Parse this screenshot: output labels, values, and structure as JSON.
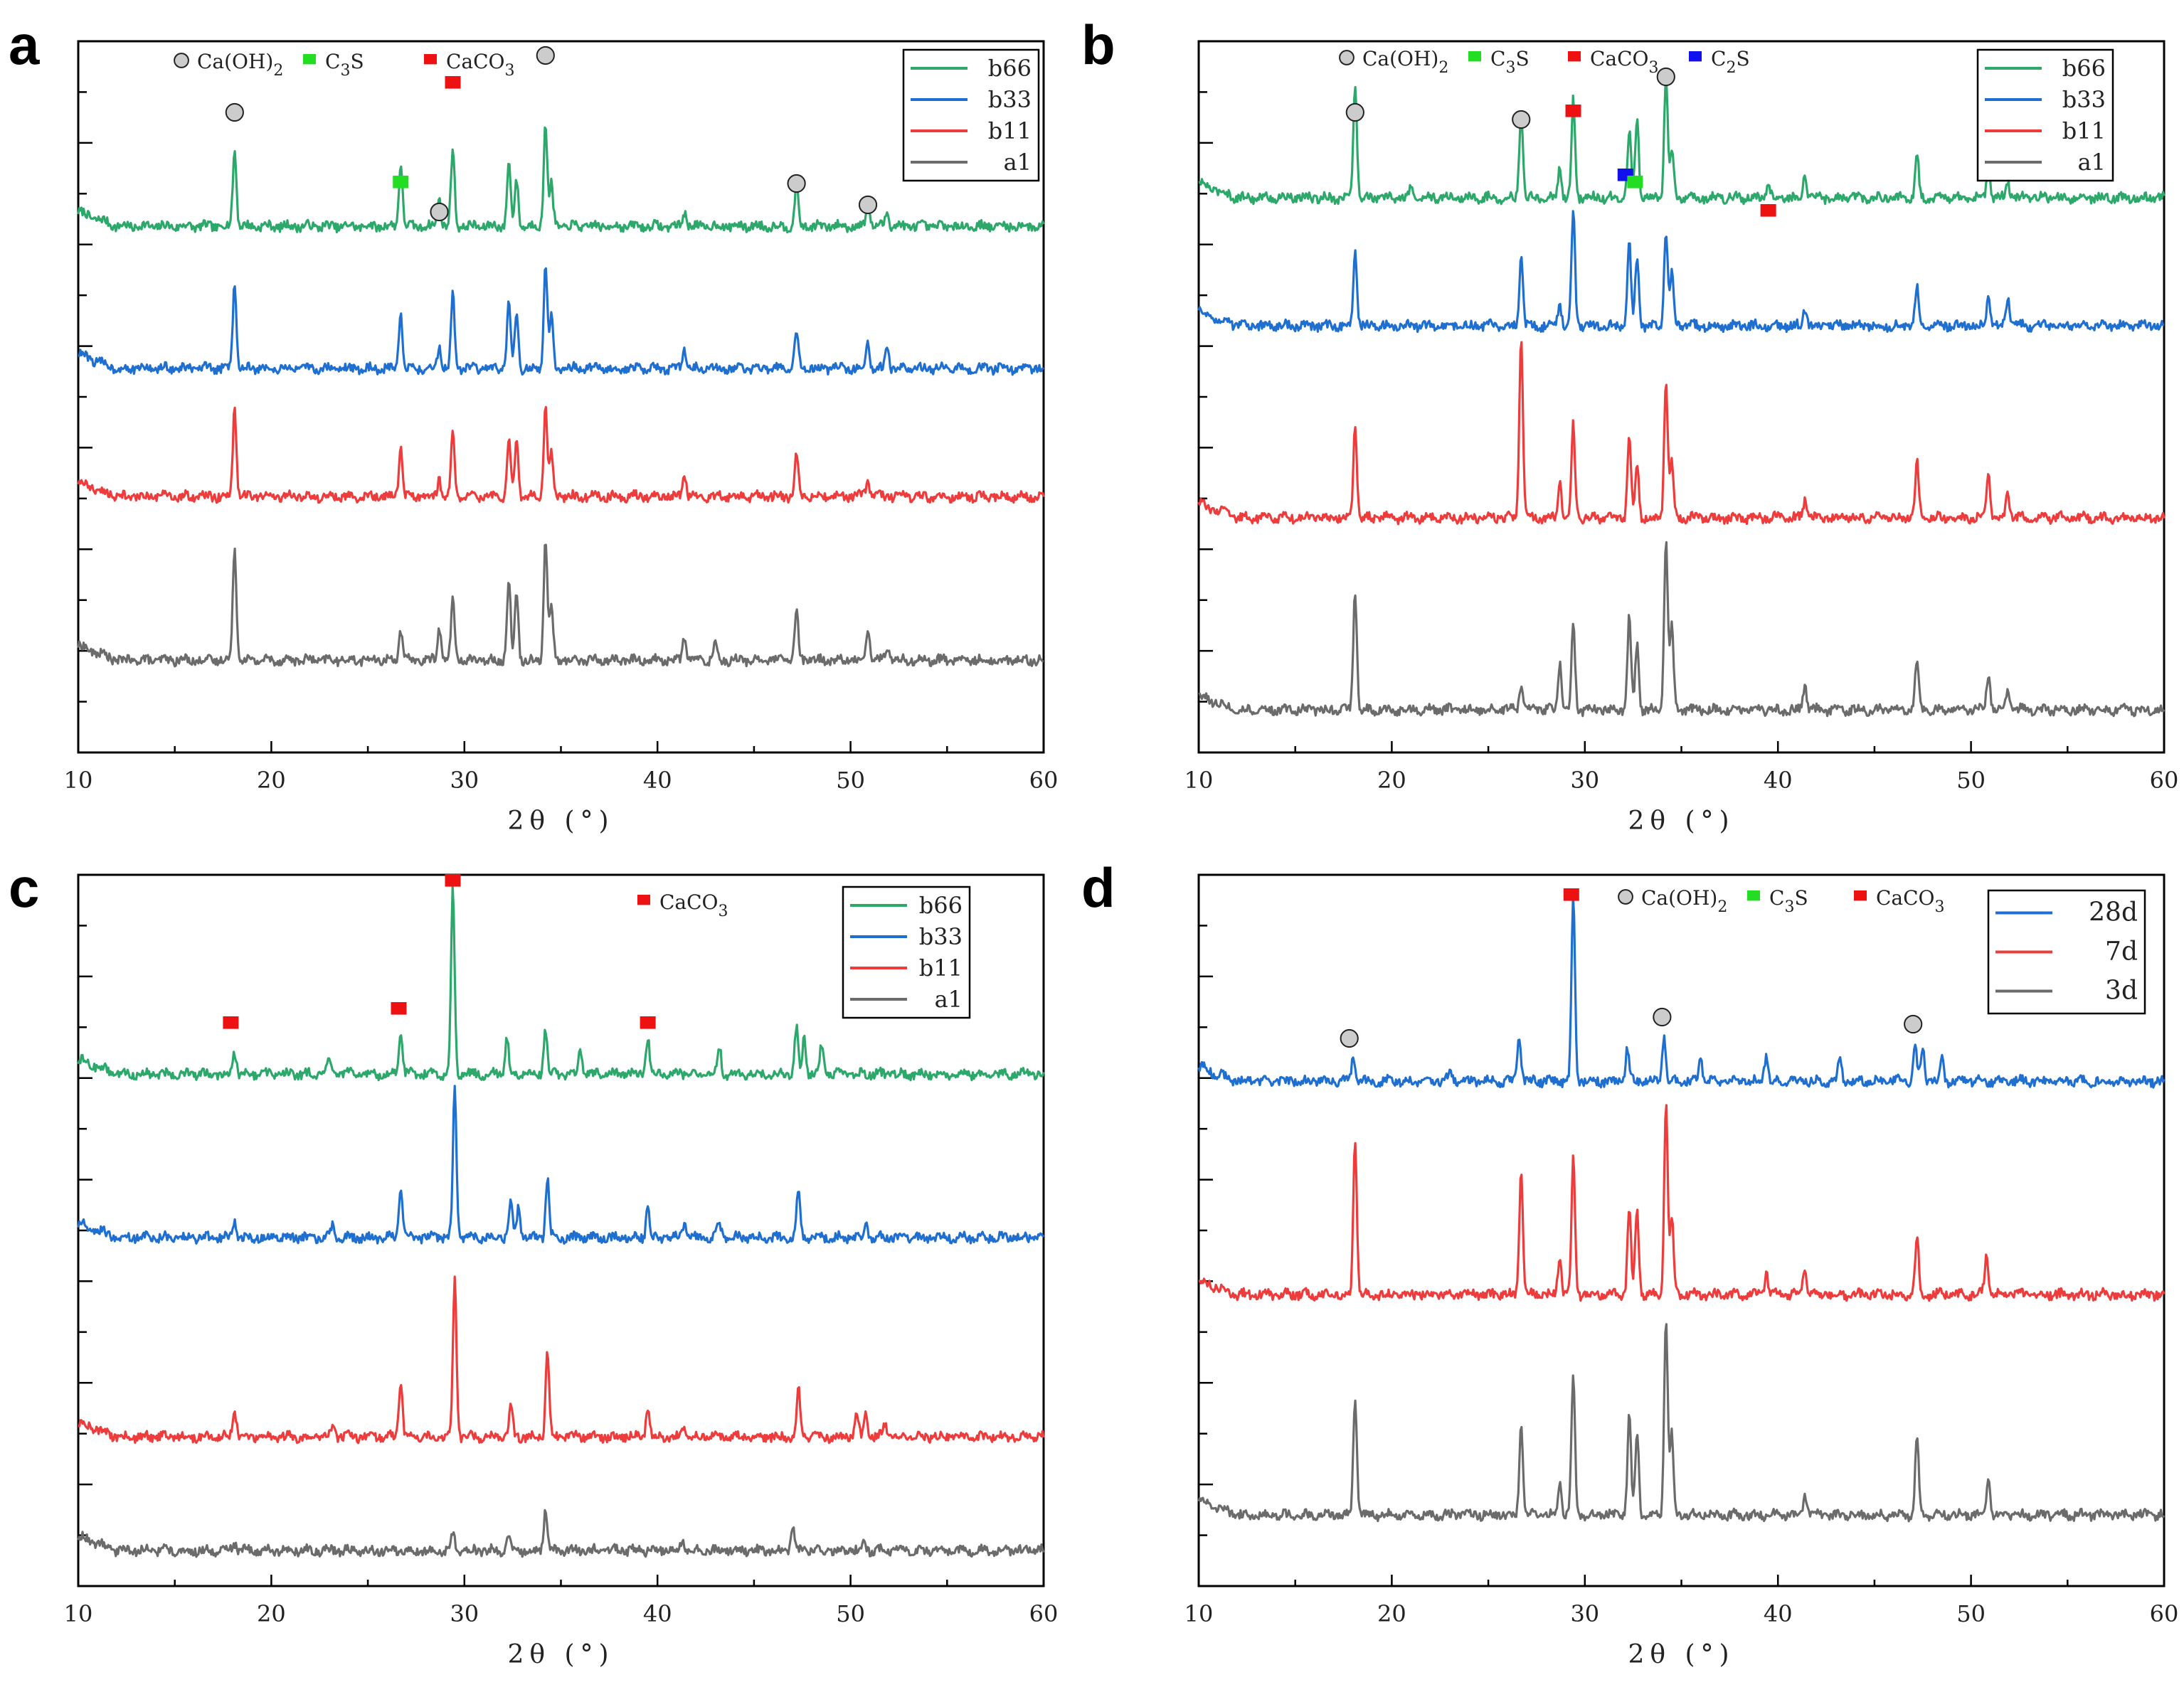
{
  "figure": {
    "colors": {
      "green": "#2ca86a",
      "blue": "#1f6fd1",
      "red": "#ee3b3b",
      "gray": "#6b6b6b",
      "marker_green": "#22dd22",
      "marker_red": "#ee1111",
      "marker_blue": "#1111ee",
      "marker_gray": "#cccccc"
    }
  },
  "chart_data": [
    {
      "panel": "a",
      "type": "line",
      "xlabel": "2θ (°)",
      "ylabel": "",
      "xlim": [
        10,
        60
      ],
      "xticks": [
        10,
        20,
        30,
        40,
        50,
        60
      ],
      "series": [
        {
          "name": "b66",
          "color": "green",
          "baseline": 0.74,
          "scale": 0.145
        },
        {
          "name": "b33",
          "color": "blue",
          "baseline": 0.54,
          "scale": 0.145
        },
        {
          "name": "b11",
          "color": "red",
          "baseline": 0.36,
          "scale": 0.125
        },
        {
          "name": "a1",
          "color": "gray",
          "baseline": 0.13,
          "scale": 0.17
        }
      ],
      "peak_scale": {
        "b66": [
          [
            18.1,
            0.75
          ],
          [
            26.7,
            0.62
          ],
          [
            28.7,
            0.28
          ],
          [
            29.4,
            0.75
          ],
          [
            32.3,
            0.62
          ],
          [
            32.7,
            0.45
          ],
          [
            34.2,
            1.0
          ],
          [
            34.5,
            0.4
          ],
          [
            41.4,
            0.15
          ],
          [
            47.2,
            0.4
          ],
          [
            50.9,
            0.25
          ],
          [
            51.9,
            0.15
          ]
        ],
        "b33": [
          [
            18.1,
            0.85
          ],
          [
            26.7,
            0.55
          ],
          [
            28.7,
            0.22
          ],
          [
            29.4,
            0.72
          ],
          [
            32.3,
            0.62
          ],
          [
            32.7,
            0.5
          ],
          [
            34.2,
            1.0
          ],
          [
            34.5,
            0.5
          ],
          [
            41.4,
            0.2
          ],
          [
            47.2,
            0.35
          ],
          [
            50.9,
            0.25
          ],
          [
            51.9,
            0.2
          ]
        ],
        "b11": [
          [
            18.1,
            1.0
          ],
          [
            26.7,
            0.55
          ],
          [
            28.7,
            0.2
          ],
          [
            29.4,
            0.75
          ],
          [
            32.3,
            0.62
          ],
          [
            32.7,
            0.62
          ],
          [
            34.2,
            1.0
          ],
          [
            34.5,
            0.5
          ],
          [
            41.4,
            0.25
          ],
          [
            47.2,
            0.45
          ],
          [
            50.9,
            0.2
          ]
        ],
        "a1": [
          [
            18.1,
            0.95
          ],
          [
            26.7,
            0.25
          ],
          [
            28.7,
            0.28
          ],
          [
            29.4,
            0.5
          ],
          [
            32.3,
            0.68
          ],
          [
            32.7,
            0.55
          ],
          [
            34.2,
            1.0
          ],
          [
            34.5,
            0.45
          ],
          [
            41.4,
            0.2
          ],
          [
            43.0,
            0.15
          ],
          [
            47.2,
            0.4
          ],
          [
            50.9,
            0.28
          ],
          [
            51.9,
            0.12
          ]
        ]
      },
      "legend": [
        "b66",
        "b33",
        "b11",
        "a1"
      ],
      "phase_legend": [
        {
          "marker": "circle",
          "label": "Ca(OH)",
          "sub": "2"
        },
        {
          "marker": "square-green",
          "label": "C",
          "sub": "3",
          "tail": "S"
        },
        {
          "marker": "square-red",
          "label": "CaCO",
          "sub": "3"
        }
      ],
      "markers": [
        {
          "x": 18.1,
          "y": 0.9,
          "kind": "circle"
        },
        {
          "x": 26.7,
          "y": 0.8,
          "kind": "square-green"
        },
        {
          "x": 28.7,
          "y": 0.76,
          "kind": "circle"
        },
        {
          "x": 29.4,
          "y": 0.94,
          "kind": "square-red"
        },
        {
          "x": 34.2,
          "y": 0.98,
          "kind": "circle"
        },
        {
          "x": 47.2,
          "y": 0.8,
          "kind": "circle"
        },
        {
          "x": 50.9,
          "y": 0.77,
          "kind": "circle"
        }
      ]
    },
    {
      "panel": "b",
      "type": "line",
      "xlabel": "2θ (°)",
      "ylabel": "",
      "xlim": [
        10,
        60
      ],
      "xticks": [
        10,
        20,
        30,
        40,
        50,
        60
      ],
      "series": [
        {
          "name": "b66",
          "color": "green",
          "baseline": 0.78,
          "scale": 0.17
        },
        {
          "name": "b33",
          "color": "blue",
          "baseline": 0.6,
          "scale": 0.16
        },
        {
          "name": "b11",
          "color": "red",
          "baseline": 0.33,
          "scale": 0.26
        },
        {
          "name": "a1",
          "color": "gray",
          "baseline": 0.06,
          "scale": 0.24
        }
      ],
      "peak_scale": {
        "b66": [
          [
            18.1,
            0.95
          ],
          [
            21.0,
            0.08
          ],
          [
            26.7,
            0.72
          ],
          [
            28.7,
            0.25
          ],
          [
            29.4,
            0.8
          ],
          [
            32.3,
            0.55
          ],
          [
            32.7,
            0.65
          ],
          [
            34.2,
            1.0
          ],
          [
            34.5,
            0.4
          ],
          [
            39.5,
            0.15
          ],
          [
            41.4,
            0.2
          ],
          [
            47.2,
            0.35
          ],
          [
            50.9,
            0.25
          ],
          [
            51.9,
            0.15
          ]
        ],
        "b33": [
          [
            18.1,
            0.65
          ],
          [
            26.7,
            0.6
          ],
          [
            28.7,
            0.2
          ],
          [
            29.4,
            1.0
          ],
          [
            32.3,
            0.72
          ],
          [
            32.7,
            0.6
          ],
          [
            34.2,
            0.85
          ],
          [
            34.5,
            0.45
          ],
          [
            41.4,
            0.15
          ],
          [
            47.2,
            0.35
          ],
          [
            50.9,
            0.25
          ],
          [
            51.9,
            0.25
          ]
        ],
        "b11": [
          [
            18.1,
            0.5
          ],
          [
            26.7,
            1.0
          ],
          [
            28.7,
            0.2
          ],
          [
            29.4,
            0.5
          ],
          [
            32.3,
            0.45
          ],
          [
            32.7,
            0.3
          ],
          [
            34.2,
            0.75
          ],
          [
            34.5,
            0.3
          ],
          [
            41.4,
            0.1
          ],
          [
            47.2,
            0.3
          ],
          [
            50.9,
            0.25
          ],
          [
            51.9,
            0.15
          ]
        ],
        "a1": [
          [
            18.1,
            0.7
          ],
          [
            26.7,
            0.15
          ],
          [
            28.7,
            0.28
          ],
          [
            29.4,
            0.5
          ],
          [
            32.3,
            0.55
          ],
          [
            32.7,
            0.38
          ],
          [
            34.2,
            1.0
          ],
          [
            34.5,
            0.5
          ],
          [
            41.4,
            0.15
          ],
          [
            47.2,
            0.3
          ],
          [
            50.9,
            0.22
          ],
          [
            51.9,
            0.12
          ]
        ]
      },
      "legend": [
        "b66",
        "b33",
        "b11",
        "a1"
      ],
      "phase_legend": [
        {
          "marker": "circle",
          "label": "Ca(OH)",
          "sub": "2"
        },
        {
          "marker": "square-green",
          "label": "C",
          "sub": "3",
          "tail": "S"
        },
        {
          "marker": "square-red",
          "label": "CaCO",
          "sub": "3"
        },
        {
          "marker": "square-blue",
          "label": "C",
          "sub": "2",
          "tail": "S"
        }
      ],
      "markers": [
        {
          "x": 18.1,
          "y": 0.9,
          "kind": "circle"
        },
        {
          "x": 26.7,
          "y": 0.89,
          "kind": "circle"
        },
        {
          "x": 29.4,
          "y": 0.9,
          "kind": "square-red"
        },
        {
          "x": 32.1,
          "y": 0.81,
          "kind": "square-blue"
        },
        {
          "x": 32.6,
          "y": 0.8,
          "kind": "square-green"
        },
        {
          "x": 34.2,
          "y": 0.95,
          "kind": "circle"
        },
        {
          "x": 39.5,
          "y": 0.76,
          "kind": "square-red"
        }
      ]
    },
    {
      "panel": "c",
      "type": "line",
      "xlabel": "2θ (°)",
      "ylabel": "",
      "xlim": [
        10,
        60
      ],
      "xticks": [
        10,
        20,
        30,
        40,
        50,
        60
      ],
      "series": [
        {
          "name": "b66",
          "color": "green",
          "baseline": 0.72,
          "scale": 0.26
        },
        {
          "name": "b33",
          "color": "blue",
          "baseline": 0.49,
          "scale": 0.21
        },
        {
          "name": "b11",
          "color": "red",
          "baseline": 0.21,
          "scale": 0.22
        },
        {
          "name": "a1",
          "color": "gray",
          "baseline": 0.05,
          "scale": 0.06
        }
      ],
      "peak_scale": {
        "b66": [
          [
            18.1,
            0.12
          ],
          [
            23.0,
            0.08
          ],
          [
            26.7,
            0.25
          ],
          [
            29.4,
            1.0
          ],
          [
            32.2,
            0.2
          ],
          [
            34.2,
            0.25
          ],
          [
            36.0,
            0.12
          ],
          [
            39.5,
            0.2
          ],
          [
            43.2,
            0.15
          ],
          [
            47.2,
            0.25
          ],
          [
            47.6,
            0.2
          ],
          [
            48.5,
            0.15
          ]
        ],
        "b33": [
          [
            18.1,
            0.12
          ],
          [
            23.2,
            0.08
          ],
          [
            26.7,
            0.35
          ],
          [
            29.5,
            1.0
          ],
          [
            32.4,
            0.25
          ],
          [
            32.8,
            0.2
          ],
          [
            34.3,
            0.4
          ],
          [
            39.5,
            0.2
          ],
          [
            41.4,
            0.1
          ],
          [
            43.2,
            0.1
          ],
          [
            47.3,
            0.3
          ],
          [
            50.8,
            0.1
          ]
        ],
        "b11": [
          [
            18.1,
            0.18
          ],
          [
            23.2,
            0.08
          ],
          [
            26.7,
            0.35
          ],
          [
            29.5,
            1.0
          ],
          [
            32.4,
            0.2
          ],
          [
            34.3,
            0.55
          ],
          [
            39.5,
            0.18
          ],
          [
            41.4,
            0.08
          ],
          [
            47.3,
            0.3
          ],
          [
            50.3,
            0.15
          ],
          [
            50.8,
            0.15
          ],
          [
            51.8,
            0.08
          ]
        ],
        "a1": [
          [
            18.1,
            0.2
          ],
          [
            29.4,
            0.4
          ],
          [
            32.3,
            0.3
          ],
          [
            34.2,
            1.0
          ],
          [
            41.3,
            0.3
          ],
          [
            47.0,
            0.6
          ],
          [
            50.7,
            0.3
          ]
        ]
      },
      "legend": [
        "b66",
        "b33",
        "b11",
        "a1"
      ],
      "phase_legend": [
        {
          "marker": "square-red",
          "label": "CaCO",
          "sub": "3"
        }
      ],
      "markers": [
        {
          "x": 17.9,
          "y": 0.79,
          "kind": "square-red"
        },
        {
          "x": 26.6,
          "y": 0.81,
          "kind": "square-red"
        },
        {
          "x": 29.4,
          "y": 0.99,
          "kind": "square-red"
        },
        {
          "x": 39.5,
          "y": 0.79,
          "kind": "square-red"
        }
      ]
    },
    {
      "panel": "d",
      "type": "line",
      "xlabel": "2θ (°)",
      "ylabel": "",
      "xlim": [
        10,
        60
      ],
      "xticks": [
        10,
        20,
        30,
        40,
        50,
        60
      ],
      "series": [
        {
          "name": "28d",
          "color": "blue",
          "baseline": 0.71,
          "scale": 0.26
        },
        {
          "name": "7d",
          "color": "red",
          "baseline": 0.41,
          "scale": 0.27
        },
        {
          "name": "3d",
          "color": "gray",
          "baseline": 0.1,
          "scale": 0.28
        }
      ],
      "peak_scale": {
        "28d": [
          [
            18.0,
            0.12
          ],
          [
            23.0,
            0.05
          ],
          [
            26.6,
            0.25
          ],
          [
            29.4,
            1.0
          ],
          [
            32.2,
            0.18
          ],
          [
            34.1,
            0.25
          ],
          [
            36.0,
            0.12
          ],
          [
            39.4,
            0.15
          ],
          [
            43.2,
            0.13
          ],
          [
            47.1,
            0.2
          ],
          [
            47.5,
            0.18
          ],
          [
            48.5,
            0.12
          ]
        ],
        "7d": [
          [
            18.1,
            0.8
          ],
          [
            26.7,
            0.65
          ],
          [
            28.7,
            0.2
          ],
          [
            29.4,
            0.7
          ],
          [
            32.3,
            0.45
          ],
          [
            32.7,
            0.45
          ],
          [
            34.2,
            1.0
          ],
          [
            34.5,
            0.4
          ],
          [
            39.4,
            0.12
          ],
          [
            41.4,
            0.15
          ],
          [
            47.2,
            0.3
          ],
          [
            50.8,
            0.2
          ]
        ],
        "3d": [
          [
            18.1,
            0.6
          ],
          [
            26.7,
            0.45
          ],
          [
            28.7,
            0.18
          ],
          [
            29.4,
            0.7
          ],
          [
            32.3,
            0.5
          ],
          [
            32.7,
            0.42
          ],
          [
            34.2,
            1.0
          ],
          [
            34.5,
            0.4
          ],
          [
            41.4,
            0.1
          ],
          [
            47.2,
            0.38
          ],
          [
            50.9,
            0.2
          ]
        ]
      },
      "legend": [
        "28d",
        "7d",
        "3d"
      ],
      "phase_legend": [
        {
          "marker": "circle",
          "label": "Ca(OH)",
          "sub": "2"
        },
        {
          "marker": "square-green",
          "label": "C",
          "sub": "3",
          "tail": "S"
        },
        {
          "marker": "square-red",
          "label": "CaCO",
          "sub": "3"
        }
      ],
      "markers": [
        {
          "x": 29.3,
          "y": 0.97,
          "kind": "square-red"
        },
        {
          "x": 17.8,
          "y": 0.77,
          "kind": "circle"
        },
        {
          "x": 34.0,
          "y": 0.8,
          "kind": "circle"
        },
        {
          "x": 47.0,
          "y": 0.79,
          "kind": "circle"
        }
      ]
    }
  ]
}
